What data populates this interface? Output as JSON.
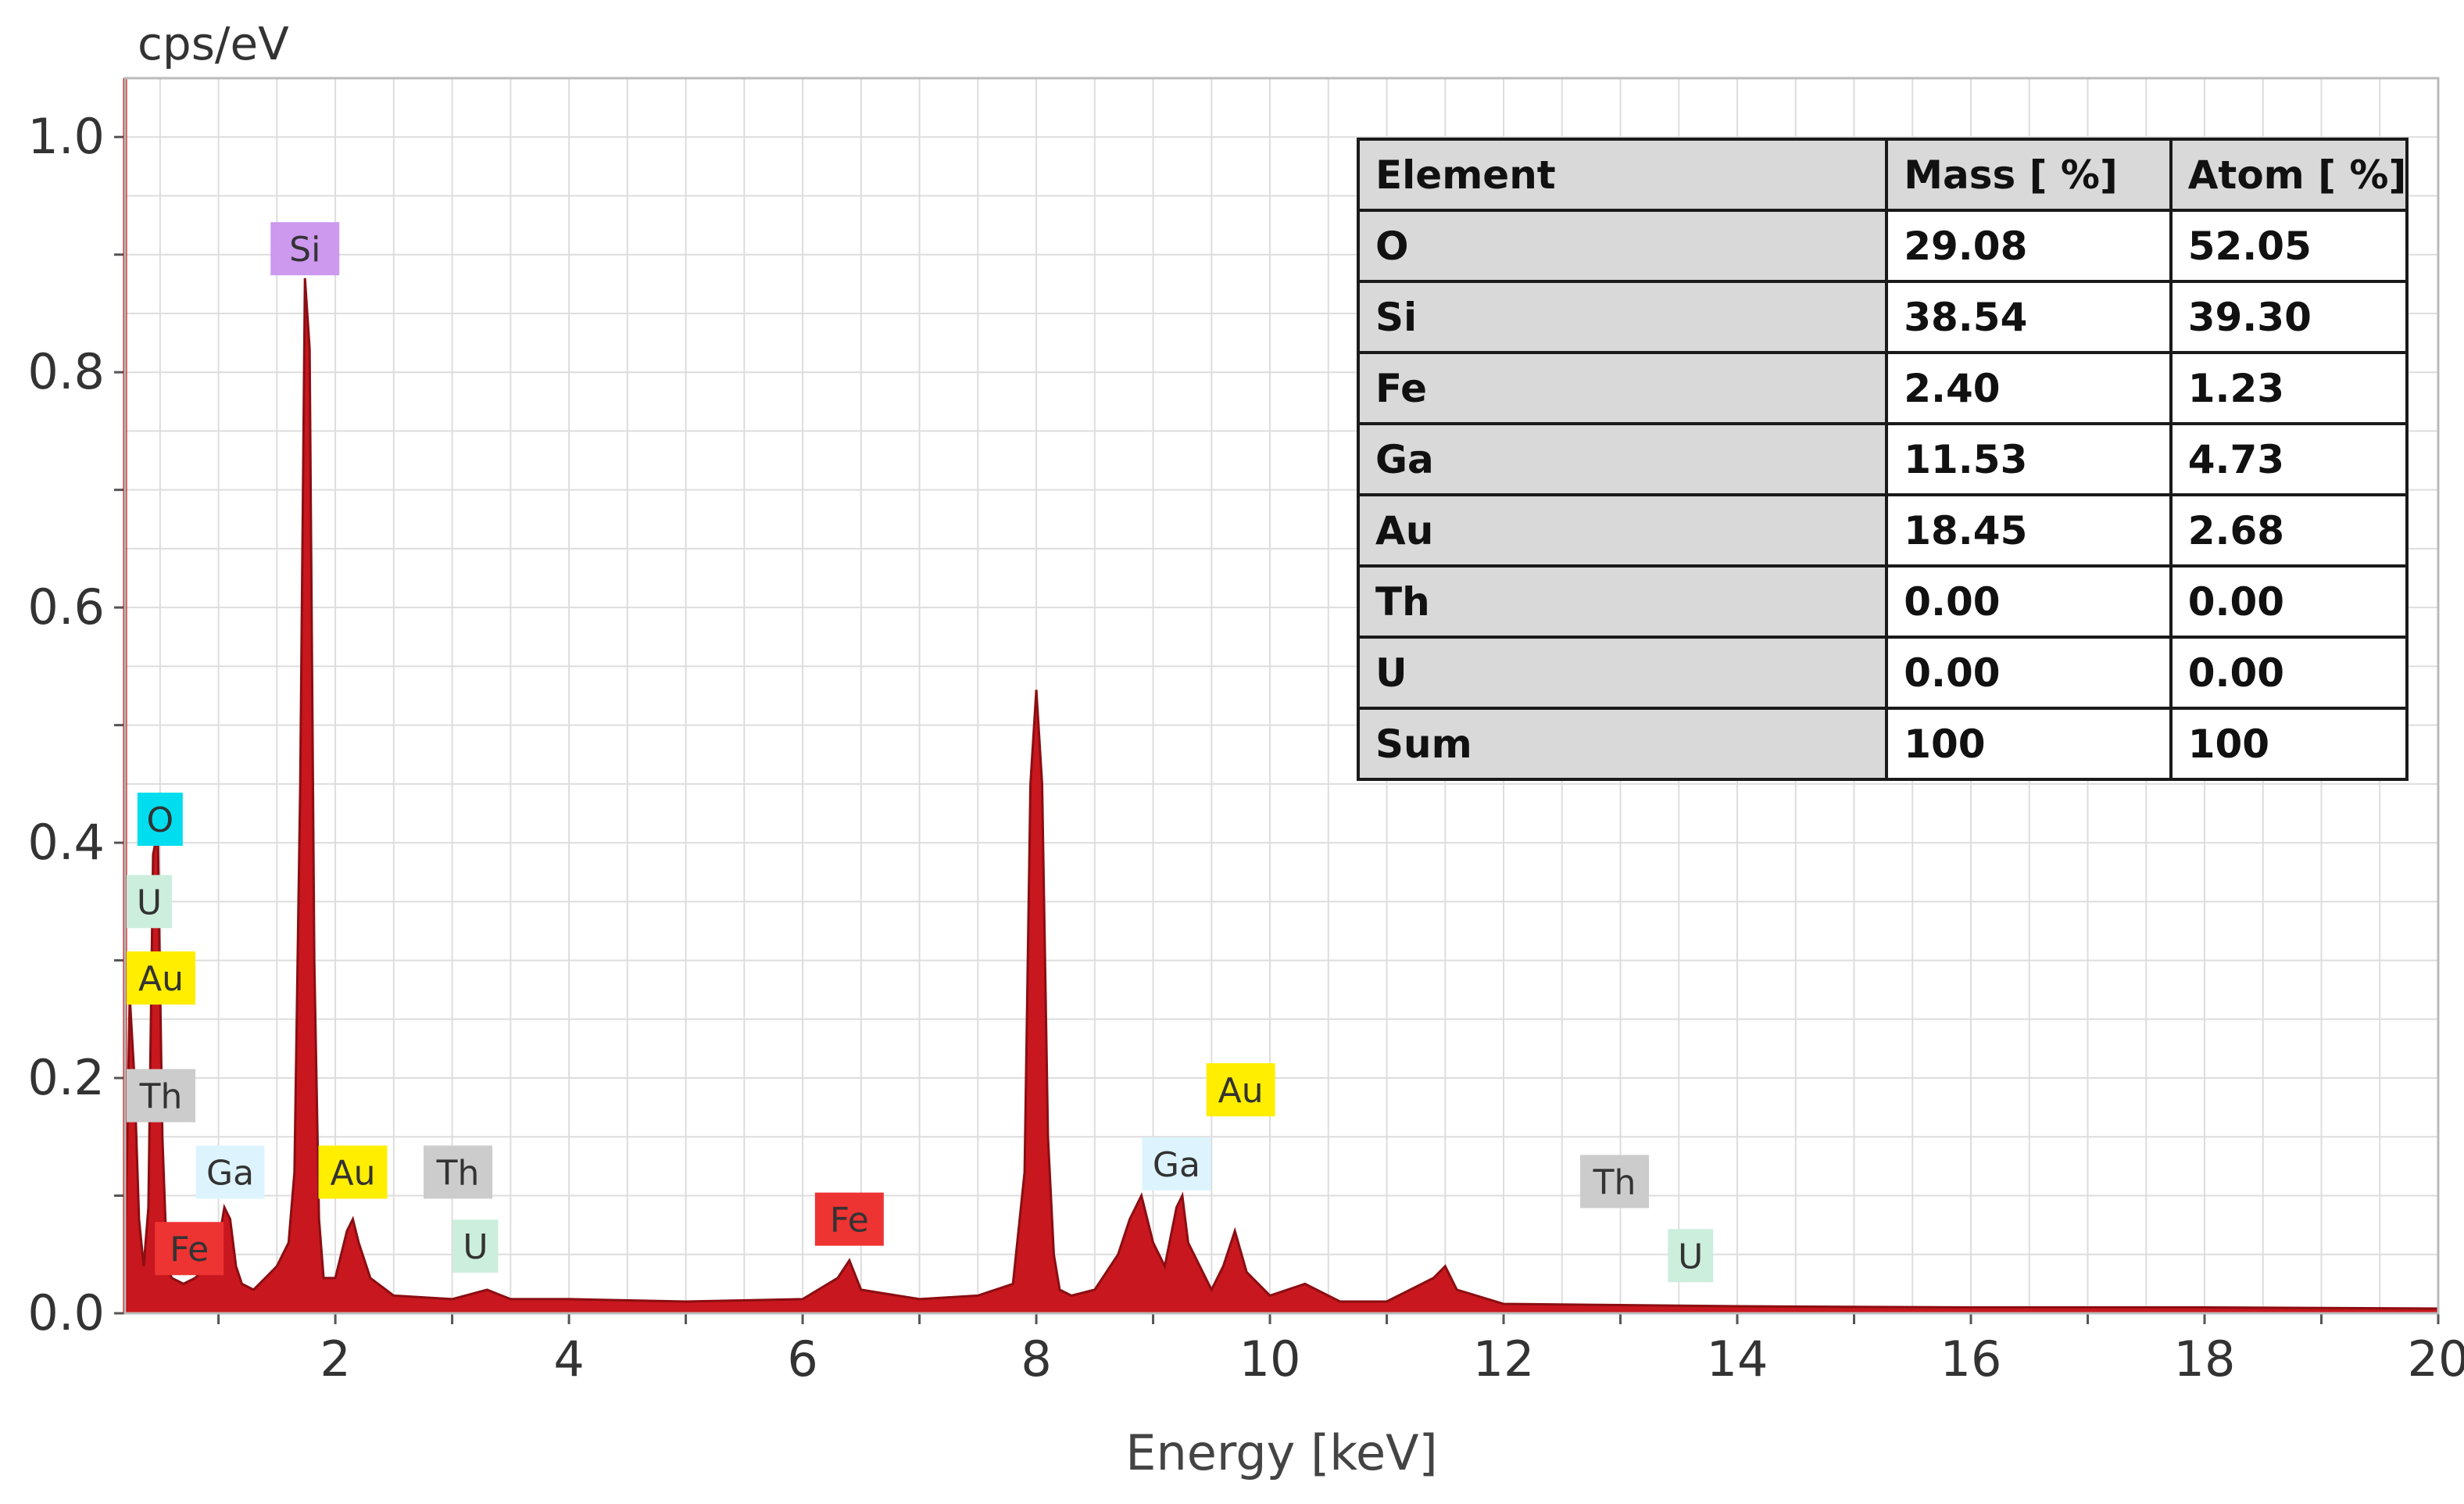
{
  "chart_data": {
    "type": "line",
    "title": "",
    "xlabel": "Energy [keV]",
    "ylabel": "cps/eV",
    "xlim": [
      0.2,
      20
    ],
    "ylim": [
      0,
      1.05
    ],
    "x_ticks": [
      2,
      4,
      6,
      8,
      10,
      12,
      14,
      16,
      18,
      20
    ],
    "y_ticks": [
      0.0,
      0.2,
      0.4,
      0.6,
      0.8,
      1.0
    ],
    "grid": true,
    "colors": {
      "spectrum_fill": "#c8171e",
      "spectrum_line": "#8b0e12",
      "axis": "#c00000",
      "grid": "#dddddd"
    },
    "series": [
      {
        "x": [
          0.2,
          0.24,
          0.28,
          0.32,
          0.36,
          0.4,
          0.44,
          0.48,
          0.52,
          0.56,
          0.6,
          0.7,
          0.8,
          0.9,
          1.0,
          1.05,
          1.1,
          1.15,
          1.2,
          1.3,
          1.4,
          1.5,
          1.6,
          1.65,
          1.7,
          1.74,
          1.78,
          1.82,
          1.86,
          1.9,
          2.0,
          2.1,
          2.15,
          2.2,
          2.3,
          2.5,
          3.0,
          3.3,
          3.5,
          4.0,
          5.0,
          6.0,
          6.3,
          6.4,
          6.5,
          7.0,
          7.5,
          7.8,
          7.9,
          7.95,
          8.0,
          8.05,
          8.1,
          8.15,
          8.2,
          8.3,
          8.5,
          8.7,
          8.8,
          8.9,
          9.0,
          9.1,
          9.2,
          9.25,
          9.3,
          9.5,
          9.6,
          9.7,
          9.8,
          10.0,
          10.3,
          10.6,
          11.0,
          11.4,
          11.5,
          11.6,
          12.0,
          13.0,
          14.0,
          16.0,
          18.0,
          20.0
        ],
        "y": [
          0.04,
          0.27,
          0.2,
          0.08,
          0.04,
          0.09,
          0.39,
          0.41,
          0.15,
          0.04,
          0.03,
          0.025,
          0.03,
          0.04,
          0.06,
          0.09,
          0.08,
          0.04,
          0.025,
          0.02,
          0.03,
          0.04,
          0.06,
          0.12,
          0.45,
          0.88,
          0.82,
          0.3,
          0.08,
          0.03,
          0.03,
          0.07,
          0.08,
          0.06,
          0.03,
          0.015,
          0.012,
          0.02,
          0.012,
          0.012,
          0.01,
          0.012,
          0.03,
          0.045,
          0.02,
          0.012,
          0.015,
          0.025,
          0.12,
          0.45,
          0.53,
          0.45,
          0.15,
          0.05,
          0.02,
          0.015,
          0.02,
          0.05,
          0.08,
          0.1,
          0.06,
          0.04,
          0.09,
          0.1,
          0.06,
          0.02,
          0.04,
          0.07,
          0.035,
          0.015,
          0.025,
          0.01,
          0.01,
          0.03,
          0.04,
          0.02,
          0.008,
          0.007,
          0.006,
          0.005,
          0.005,
          0.004
        ]
      }
    ],
    "peak_labels": [
      {
        "text": "Si",
        "x": 1.74,
        "y": 0.905,
        "color": "#cc99ee"
      },
      {
        "text": "O",
        "x": 0.5,
        "y": 0.42,
        "color": "#00ddee"
      },
      {
        "text": "U",
        "x": 0.32,
        "y": 0.35,
        "color": "#cceedd"
      },
      {
        "text": "Au",
        "x": 0.32,
        "y": 0.285,
        "color": "#ffee00"
      },
      {
        "text": "Th",
        "x": 0.36,
        "y": 0.185,
        "color": "#cccccc"
      },
      {
        "text": "Fe",
        "x": 0.75,
        "y": 0.055,
        "color": "#ee3333"
      },
      {
        "text": "Ga",
        "x": 1.1,
        "y": 0.12,
        "color": "#ddf4ff"
      },
      {
        "text": "Au",
        "x": 2.15,
        "y": 0.12,
        "color": "#ffee00"
      },
      {
        "text": "Th",
        "x": 3.05,
        "y": 0.12,
        "color": "#cccccc"
      },
      {
        "text": "U",
        "x": 3.2,
        "y": 0.057,
        "color": "#cceedd"
      },
      {
        "text": "Fe",
        "x": 6.4,
        "y": 0.08,
        "color": "#ee3333"
      },
      {
        "text": "Ga",
        "x": 9.2,
        "y": 0.127,
        "color": "#ddf4ff"
      },
      {
        "text": "Au",
        "x": 9.75,
        "y": 0.19,
        "color": "#ffee00"
      },
      {
        "text": "Th",
        "x": 12.95,
        "y": 0.112,
        "color": "#cccccc"
      },
      {
        "text": "U",
        "x": 13.6,
        "y": 0.049,
        "color": "#cceedd"
      }
    ]
  },
  "table": {
    "headers": [
      "Element",
      "Mass [ %]",
      "Atom [ %]"
    ],
    "rows": [
      [
        "O",
        "29.08",
        "52.05"
      ],
      [
        "Si",
        "38.54",
        "39.30"
      ],
      [
        "Fe",
        "2.40",
        "1.23"
      ],
      [
        "Ga",
        "11.53",
        "4.73"
      ],
      [
        "Au",
        "18.45",
        "2.68"
      ],
      [
        "Th",
        "0.00",
        "0.00"
      ],
      [
        "U",
        "0.00",
        "0.00"
      ],
      [
        "Sum",
        "100",
        "100"
      ]
    ]
  }
}
